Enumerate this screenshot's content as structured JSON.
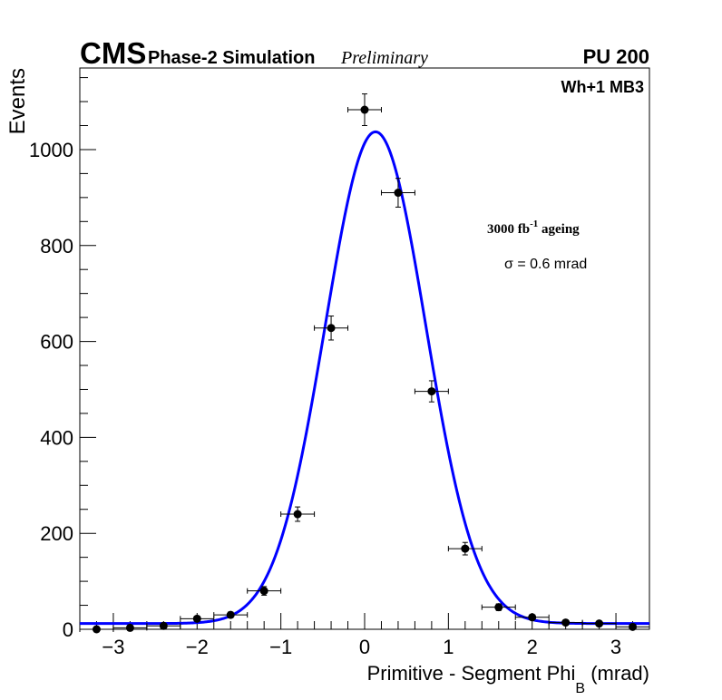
{
  "header": {
    "experiment": "CMS",
    "subtitle": "Phase-2 Simulation",
    "status": "Preliminary",
    "pileup": "PU 200"
  },
  "annotations": {
    "station": "Wh+1 MB3",
    "ageing_value": "3000 fb",
    "ageing_exp": "-1",
    "ageing_label": "ageing",
    "sigma_symbol": "σ",
    "sigma_text": "= 0.6 mrad"
  },
  "chart_data": {
    "type": "scatter",
    "title": "",
    "xlabel_main": "Primitive - Segment Phi",
    "xlabel_sub": "B",
    "xlabel_unit": "(mrad)",
    "ylabel": "Events",
    "xlim": [
      -3.4,
      3.4
    ],
    "ylim": [
      0,
      1170
    ],
    "x_ticks": [
      -3,
      -2,
      -1,
      0,
      1,
      2,
      3
    ],
    "x_tick_labels": [
      "−3",
      "−2",
      "−1",
      "0",
      "1",
      "2",
      "3"
    ],
    "y_ticks": [
      0,
      200,
      400,
      600,
      800,
      1000
    ],
    "y_tick_labels": [
      "0",
      "200",
      "400",
      "600",
      "800",
      "1000"
    ],
    "series": [
      {
        "name": "Simulation",
        "x": [
          -3.2,
          -2.8,
          -2.4,
          -2.0,
          -1.6,
          -1.2,
          -0.8,
          -0.4,
          0.0,
          0.4,
          0.8,
          1.2,
          1.6,
          2.0,
          2.4,
          2.8,
          3.2
        ],
        "y": [
          0,
          3,
          7,
          22,
          30,
          80,
          240,
          628,
          1083,
          910,
          496,
          168,
          46,
          25,
          14,
          12,
          5
        ],
        "x_error": [
          0.2,
          0.2,
          0.2,
          0.2,
          0.2,
          0.2,
          0.2,
          0.2,
          0.2,
          0.2,
          0.2,
          0.2,
          0.2,
          0.2,
          0.2,
          0.2,
          0.2
        ],
        "y_error": [
          0,
          2,
          3,
          5,
          6,
          9,
          15,
          25,
          33,
          30,
          22,
          13,
          7,
          5,
          4,
          3,
          2
        ],
        "color": "#000000"
      },
      {
        "name": "Gaussian fit",
        "type": "line",
        "constant": 1025,
        "mean": 0.13,
        "sigma": 0.6,
        "baseline": 12,
        "color": "#0000ff"
      }
    ]
  }
}
